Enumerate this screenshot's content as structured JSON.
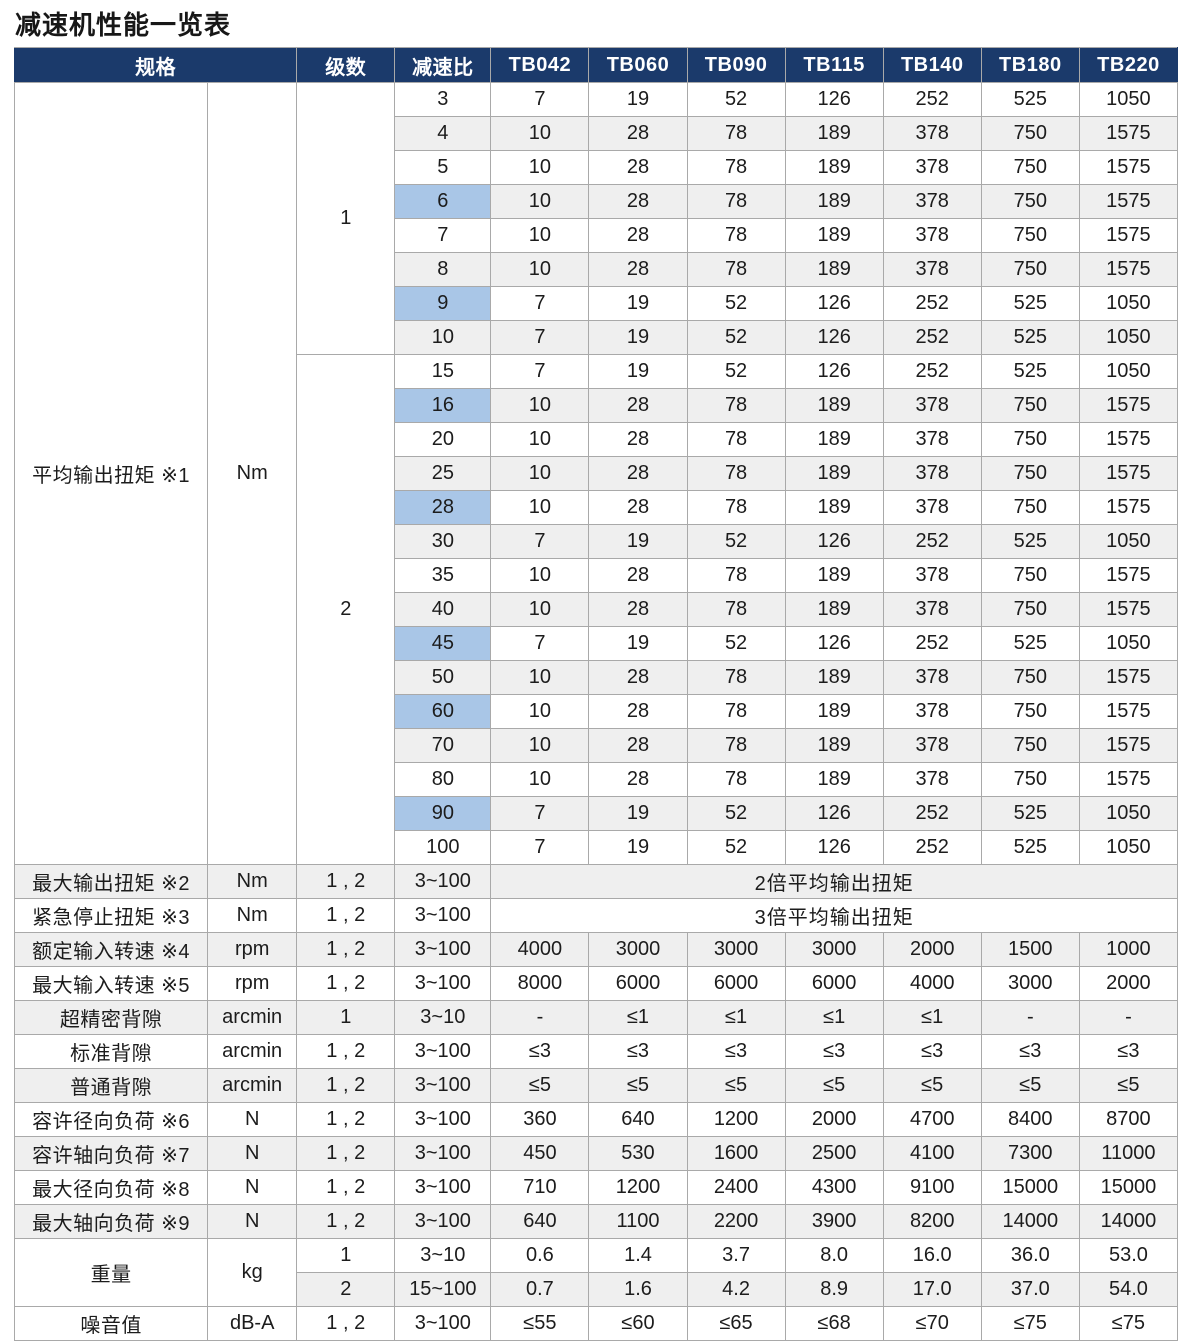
{
  "title": "减速机性能一览表",
  "colors": {
    "header_bg": "#1b3a6b",
    "header_text": "#ffffff",
    "row_stripe": "#efefef",
    "ratio_highlight": "#a9c6e7",
    "grid_line": "#a9a9a9"
  },
  "header": {
    "spec": "规格",
    "stages": "级数",
    "ratio": "减速比",
    "models": [
      "TB042",
      "TB060",
      "TB090",
      "TB115",
      "TB140",
      "TB180",
      "TB220"
    ]
  },
  "torque_section": {
    "label": "平均输出扭矩 ※1",
    "unit": "Nm",
    "groups": [
      {
        "stage": "1",
        "rows": [
          {
            "ratio": "3",
            "highlight": false,
            "values": [
              "7",
              "19",
              "52",
              "126",
              "252",
              "525",
              "1050"
            ]
          },
          {
            "ratio": "4",
            "highlight": false,
            "values": [
              "10",
              "28",
              "78",
              "189",
              "378",
              "750",
              "1575"
            ]
          },
          {
            "ratio": "5",
            "highlight": false,
            "values": [
              "10",
              "28",
              "78",
              "189",
              "378",
              "750",
              "1575"
            ]
          },
          {
            "ratio": "6",
            "highlight": true,
            "values": [
              "10",
              "28",
              "78",
              "189",
              "378",
              "750",
              "1575"
            ]
          },
          {
            "ratio": "7",
            "highlight": false,
            "values": [
              "10",
              "28",
              "78",
              "189",
              "378",
              "750",
              "1575"
            ]
          },
          {
            "ratio": "8",
            "highlight": false,
            "values": [
              "10",
              "28",
              "78",
              "189",
              "378",
              "750",
              "1575"
            ]
          },
          {
            "ratio": "9",
            "highlight": true,
            "values": [
              "7",
              "19",
              "52",
              "126",
              "252",
              "525",
              "1050"
            ]
          },
          {
            "ratio": "10",
            "highlight": false,
            "values": [
              "7",
              "19",
              "52",
              "126",
              "252",
              "525",
              "1050"
            ]
          }
        ]
      },
      {
        "stage": "2",
        "rows": [
          {
            "ratio": "15",
            "highlight": false,
            "values": [
              "7",
              "19",
              "52",
              "126",
              "252",
              "525",
              "1050"
            ]
          },
          {
            "ratio": "16",
            "highlight": true,
            "values": [
              "10",
              "28",
              "78",
              "189",
              "378",
              "750",
              "1575"
            ]
          },
          {
            "ratio": "20",
            "highlight": false,
            "values": [
              "10",
              "28",
              "78",
              "189",
              "378",
              "750",
              "1575"
            ]
          },
          {
            "ratio": "25",
            "highlight": false,
            "values": [
              "10",
              "28",
              "78",
              "189",
              "378",
              "750",
              "1575"
            ]
          },
          {
            "ratio": "28",
            "highlight": true,
            "values": [
              "10",
              "28",
              "78",
              "189",
              "378",
              "750",
              "1575"
            ]
          },
          {
            "ratio": "30",
            "highlight": false,
            "values": [
              "7",
              "19",
              "52",
              "126",
              "252",
              "525",
              "1050"
            ]
          },
          {
            "ratio": "35",
            "highlight": false,
            "values": [
              "10",
              "28",
              "78",
              "189",
              "378",
              "750",
              "1575"
            ]
          },
          {
            "ratio": "40",
            "highlight": false,
            "values": [
              "10",
              "28",
              "78",
              "189",
              "378",
              "750",
              "1575"
            ]
          },
          {
            "ratio": "45",
            "highlight": true,
            "values": [
              "7",
              "19",
              "52",
              "126",
              "252",
              "525",
              "1050"
            ]
          },
          {
            "ratio": "50",
            "highlight": false,
            "values": [
              "10",
              "28",
              "78",
              "189",
              "378",
              "750",
              "1575"
            ]
          },
          {
            "ratio": "60",
            "highlight": true,
            "values": [
              "10",
              "28",
              "78",
              "189",
              "378",
              "750",
              "1575"
            ]
          },
          {
            "ratio": "70",
            "highlight": false,
            "values": [
              "10",
              "28",
              "78",
              "189",
              "378",
              "750",
              "1575"
            ]
          },
          {
            "ratio": "80",
            "highlight": false,
            "values": [
              "10",
              "28",
              "78",
              "189",
              "378",
              "750",
              "1575"
            ]
          },
          {
            "ratio": "90",
            "highlight": true,
            "values": [
              "7",
              "19",
              "52",
              "126",
              "252",
              "525",
              "1050"
            ]
          },
          {
            "ratio": "100",
            "highlight": false,
            "values": [
              "7",
              "19",
              "52",
              "126",
              "252",
              "525",
              "1050"
            ]
          }
        ]
      }
    ]
  },
  "spec_rows": [
    {
      "label": "最大输出扭矩 ※2",
      "unit": "Nm",
      "stage": "1 , 2",
      "ratio": "3~100",
      "span_text": "2倍平均输出扭矩"
    },
    {
      "label": "紧急停止扭矩 ※3",
      "unit": "Nm",
      "stage": "1 , 2",
      "ratio": "3~100",
      "span_text": "3倍平均输出扭矩"
    },
    {
      "label": "额定输入转速 ※4",
      "unit": "rpm",
      "stage": "1 , 2",
      "ratio": "3~100",
      "values": [
        "4000",
        "3000",
        "3000",
        "3000",
        "2000",
        "1500",
        "1000"
      ]
    },
    {
      "label": "最大输入转速 ※5",
      "unit": "rpm",
      "stage": "1 , 2",
      "ratio": "3~100",
      "values": [
        "8000",
        "6000",
        "6000",
        "6000",
        "4000",
        "3000",
        "2000"
      ]
    },
    {
      "label": "超精密背隙",
      "unit": "arcmin",
      "stage": "1",
      "ratio": "3~10",
      "values": [
        "-",
        "≤1",
        "≤1",
        "≤1",
        "≤1",
        "-",
        "-"
      ]
    },
    {
      "label": "标准背隙",
      "unit": "arcmin",
      "stage": "1 , 2",
      "ratio": "3~100",
      "values": [
        "≤3",
        "≤3",
        "≤3",
        "≤3",
        "≤3",
        "≤3",
        "≤3"
      ]
    },
    {
      "label": "普通背隙",
      "unit": "arcmin",
      "stage": "1 , 2",
      "ratio": "3~100",
      "values": [
        "≤5",
        "≤5",
        "≤5",
        "≤5",
        "≤5",
        "≤5",
        "≤5"
      ]
    },
    {
      "label": "容许径向负荷 ※6",
      "unit": "N",
      "stage": "1 , 2",
      "ratio": "3~100",
      "values": [
        "360",
        "640",
        "1200",
        "2000",
        "4700",
        "8400",
        "8700"
      ]
    },
    {
      "label": "容许轴向负荷 ※7",
      "unit": "N",
      "stage": "1 , 2",
      "ratio": "3~100",
      "values": [
        "450",
        "530",
        "1600",
        "2500",
        "4100",
        "7300",
        "11000"
      ]
    },
    {
      "label": "最大径向负荷 ※8",
      "unit": "N",
      "stage": "1 , 2",
      "ratio": "3~100",
      "values": [
        "710",
        "1200",
        "2400",
        "4300",
        "9100",
        "15000",
        "15000"
      ]
    },
    {
      "label": "最大轴向负荷 ※9",
      "unit": "N",
      "stage": "1 , 2",
      "ratio": "3~100",
      "values": [
        "640",
        "1100",
        "2200",
        "3900",
        "8200",
        "14000",
        "14000"
      ]
    }
  ],
  "weight_section": {
    "label": "重量",
    "unit": "kg",
    "rows": [
      {
        "stage": "1",
        "ratio": "3~10",
        "values": [
          "0.6",
          "1.4",
          "3.7",
          "8.0",
          "16.0",
          "36.0",
          "53.0"
        ]
      },
      {
        "stage": "2",
        "ratio": "15~100",
        "values": [
          "0.7",
          "1.6",
          "4.2",
          "8.9",
          "17.0",
          "37.0",
          "54.0"
        ]
      }
    ]
  },
  "noise_row": {
    "label": "噪音值",
    "unit": "dB-A",
    "stage": "1 , 2",
    "ratio": "3~100",
    "values": [
      "≤55",
      "≤60",
      "≤65",
      "≤68",
      "≤70",
      "≤75",
      "≤75"
    ]
  }
}
